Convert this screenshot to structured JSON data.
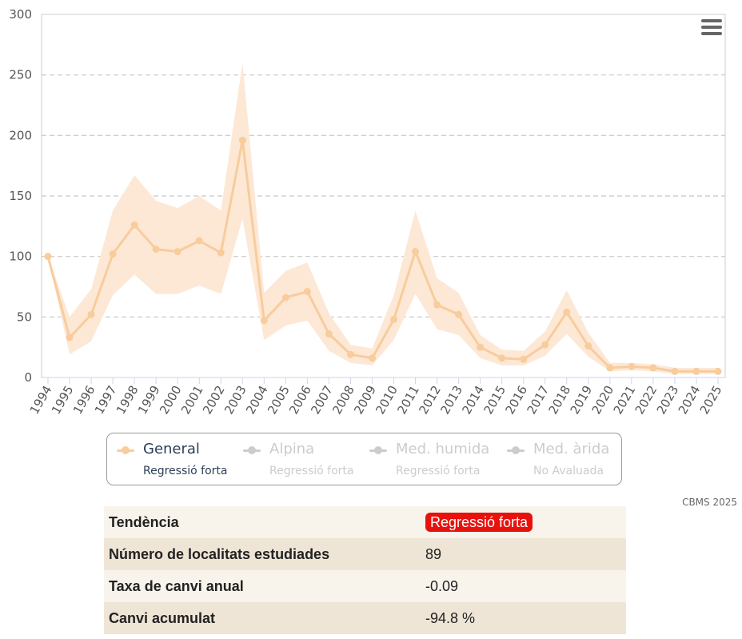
{
  "chart_data": {
    "type": "line",
    "title": "",
    "xlabel": "",
    "ylabel": "",
    "ylim": [
      0,
      300
    ],
    "yticks": [
      0,
      50,
      100,
      150,
      200,
      250,
      300
    ],
    "grid": true,
    "categories": [
      "1994",
      "1995",
      "1996",
      "1997",
      "1998",
      "1999",
      "2000",
      "2001",
      "2002",
      "2003",
      "2004",
      "2005",
      "2006",
      "2007",
      "2008",
      "2009",
      "2010",
      "2011",
      "2012",
      "2013",
      "2014",
      "2015",
      "2016",
      "2017",
      "2018",
      "2019",
      "2020",
      "2021",
      "2022",
      "2023",
      "2024",
      "2025"
    ],
    "series": [
      {
        "name": "General",
        "color": "#f8cc9c",
        "band_color": "#fde8d6",
        "values": [
          100,
          33,
          52,
          102,
          126,
          106,
          104,
          113,
          103,
          196,
          47,
          66,
          71,
          36,
          19,
          16,
          48,
          104,
          60,
          52,
          25,
          16,
          15,
          27,
          54,
          26,
          8,
          9,
          8,
          5,
          5,
          5
        ],
        "lower": [
          100,
          19,
          30,
          68,
          85,
          69,
          69,
          76,
          69,
          131,
          31,
          43,
          47,
          22,
          12,
          10,
          31,
          69,
          40,
          35,
          16,
          10,
          10,
          18,
          36,
          17,
          5,
          6,
          5,
          3,
          3,
          3
        ],
        "upper": [
          100,
          50,
          73,
          138,
          167,
          146,
          140,
          150,
          138,
          260,
          70,
          88,
          95,
          53,
          27,
          24,
          68,
          138,
          82,
          70,
          35,
          23,
          22,
          38,
          72,
          37,
          12,
          12,
          11,
          8,
          8,
          8
        ]
      }
    ]
  },
  "legend": [
    {
      "name": "General",
      "subtitle": "Regressió forta",
      "active": true
    },
    {
      "name": "Alpina",
      "subtitle": "Regressió forta",
      "active": false
    },
    {
      "name": "Med. humida",
      "subtitle": "Regressió forta",
      "active": false
    },
    {
      "name": "Med. àrida",
      "subtitle": "No Avaluada",
      "active": false
    }
  ],
  "credits": "CBMS 2025",
  "stats": {
    "trend_label": "Tendència",
    "trend_value": "Regressió forta",
    "sites_label": "Número de localitats estudiades",
    "sites_value": "89",
    "rate_label": "Taxa de canvi anual",
    "rate_value": "-0.09",
    "cumulative_label": "Canvi acumulat",
    "cumulative_value": "-94.8 %"
  },
  "colors": {
    "legend_active": "#2b3e57",
    "legend_inactive": "#cccccc",
    "badge": "#e8120d"
  }
}
